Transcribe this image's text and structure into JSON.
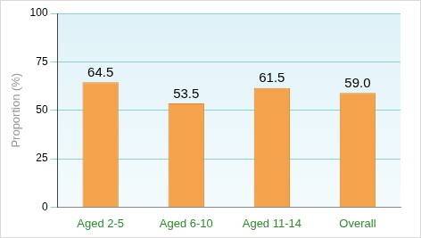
{
  "chart_data": {
    "type": "bar",
    "ylabel": "Proportion (%)",
    "categories": [
      "Aged 2-5",
      "Aged 6-10",
      "Aged 11-14",
      "Overall"
    ],
    "values": [
      64.5,
      53.5,
      61.5,
      59.0
    ],
    "value_labels": [
      "64.5",
      "53.5",
      "61.5",
      "59.0"
    ],
    "color": "#f4a24c",
    "ylim": [
      0,
      100
    ],
    "yticks": [
      0,
      25,
      50,
      75,
      100
    ],
    "grid": true,
    "data_labels": true
  }
}
